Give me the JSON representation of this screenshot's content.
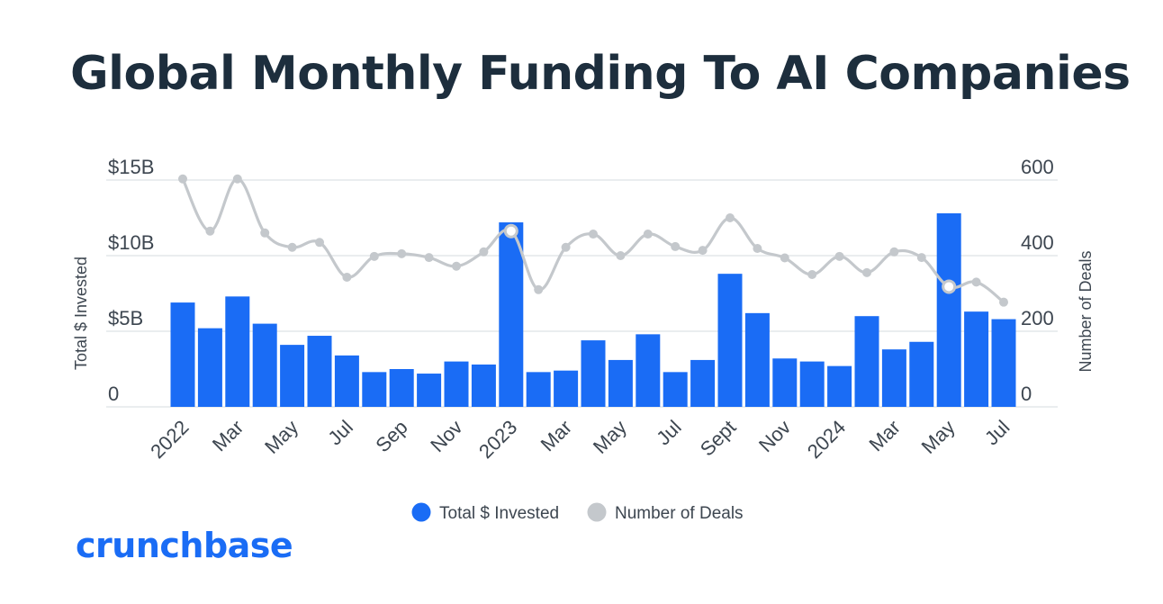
{
  "title": "Global Monthly Funding To AI Companies",
  "brand": "crunchbase",
  "colors": {
    "bars": "#1a6cf5",
    "deals": "#c4c8cc",
    "text": "#1d2e3d",
    "axis_text": "#3d4650",
    "grid": "#e4e7ea"
  },
  "chart_data": {
    "type": "bar",
    "title": "Global Monthly Funding To AI Companies",
    "categories": [
      "Jan 2022",
      "Feb 2022",
      "Mar 2022",
      "Apr 2022",
      "May 2022",
      "Jun 2022",
      "Jul 2022",
      "Aug 2022",
      "Sep 2022",
      "Oct 2022",
      "Nov 2022",
      "Dec 2022",
      "Jan 2023",
      "Feb 2023",
      "Mar 2023",
      "Apr 2023",
      "May 2023",
      "Jun 2023",
      "Jul 2023",
      "Aug 2023",
      "Sep 2023",
      "Oct 2023",
      "Nov 2023",
      "Dec 2023",
      "Jan 2024",
      "Feb 2024",
      "Mar 2024",
      "Apr 2024",
      "May 2024",
      "Jun 2024",
      "Jul 2024"
    ],
    "x_tick_labels": [
      "2022",
      "",
      "Mar",
      "",
      "May",
      "",
      "Jul",
      "",
      "Sep",
      "",
      "Nov",
      "",
      "2023",
      "",
      "Mar",
      "",
      "May",
      "",
      "Jul",
      "",
      "Sept",
      "",
      "Nov",
      "",
      "2024",
      "",
      "Mar",
      "",
      "May",
      "",
      "Jul"
    ],
    "series": [
      {
        "name": "Total $ Invested",
        "type": "bar",
        "axis": "left",
        "unit": "$B",
        "values": [
          6.9,
          5.2,
          7.3,
          5.5,
          4.1,
          4.7,
          3.4,
          2.3,
          2.5,
          2.2,
          3.0,
          2.8,
          12.2,
          2.3,
          2.4,
          4.4,
          3.1,
          4.8,
          2.3,
          3.1,
          8.8,
          6.2,
          3.2,
          3.0,
          2.7,
          6.0,
          3.8,
          4.3,
          12.8,
          6.3,
          5.8
        ]
      },
      {
        "name": "Number of Deals",
        "type": "line",
        "axis": "right",
        "values": [
          603,
          465,
          603,
          460,
          422,
          435,
          343,
          398,
          405,
          395,
          372,
          410,
          465,
          310,
          422,
          457,
          400,
          457,
          424,
          414,
          500,
          419,
          394,
          350,
          398,
          355,
          410,
          395,
          318,
          330,
          277
        ]
      }
    ],
    "highlighted_deal_points": [
      12,
      28
    ],
    "left_axis": {
      "label": "Total $ Invested",
      "ticks": [
        "0",
        "$5B",
        "$10B",
        "$15B"
      ],
      "tick_values": [
        0,
        5,
        10,
        15
      ],
      "range": [
        0,
        15
      ]
    },
    "right_axis": {
      "label": "Number of Deals",
      "ticks": [
        "0",
        "200",
        "400",
        "600"
      ],
      "tick_values": [
        0,
        200,
        400,
        600
      ],
      "range": [
        0,
        600
      ]
    },
    "legend": {
      "items": [
        "Total $ Invested",
        "Number of Deals"
      ],
      "placement": "bottom-center"
    },
    "grid": true
  }
}
